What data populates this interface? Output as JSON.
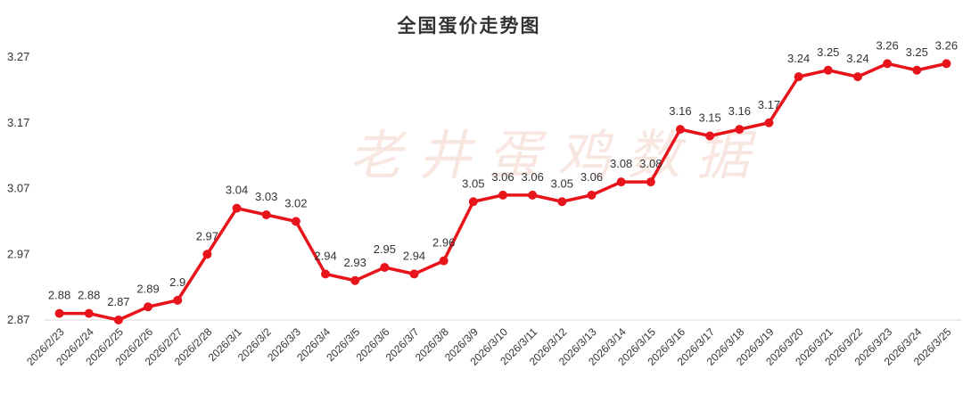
{
  "watermark": "老井蛋鸡数据",
  "chart_data": {
    "type": "line",
    "title": "全国蛋价走势图",
    "xlabel": "",
    "ylabel": "",
    "ylim": [
      2.87,
      3.27
    ],
    "yticks": [
      "2.87",
      "2.97",
      "3.07",
      "3.17",
      "3.27"
    ],
    "grid": false,
    "legend": "none",
    "color": "#e8141b",
    "categories": [
      "2026/2/23",
      "2026/2/24",
      "2026/2/25",
      "2026/2/26",
      "2026/2/27",
      "2026/2/28",
      "2026/3/1",
      "2026/3/2",
      "2026/3/3",
      "2026/3/4",
      "2026/3/5",
      "2026/3/6",
      "2026/3/7",
      "2026/3/8",
      "2026/3/9",
      "2026/3/10",
      "2026/3/11",
      "2026/3/12",
      "2026/3/13",
      "2026/3/14",
      "2026/3/15",
      "2026/3/16",
      "2026/3/17",
      "2026/3/18",
      "2026/3/19",
      "2026/3/20",
      "2026/3/21",
      "2026/3/22",
      "2026/3/23",
      "2026/3/24",
      "2026/3/25"
    ],
    "values": [
      2.88,
      2.88,
      2.87,
      2.89,
      2.9,
      2.97,
      3.04,
      3.03,
      3.02,
      2.94,
      2.93,
      2.95,
      2.94,
      2.96,
      3.05,
      3.06,
      3.06,
      3.05,
      3.06,
      3.08,
      3.08,
      3.16,
      3.15,
      3.16,
      3.17,
      3.24,
      3.25,
      3.24,
      3.26,
      3.25,
      3.26
    ]
  }
}
